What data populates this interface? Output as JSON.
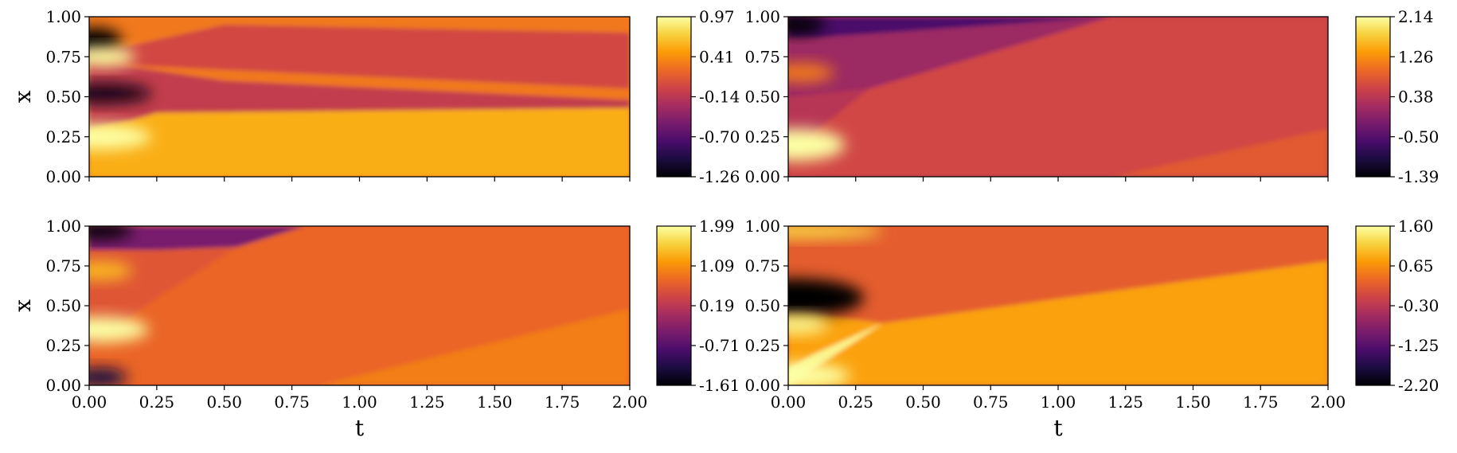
{
  "figure": {
    "colormap": "inferno",
    "colormap_stops": [
      "#000004",
      "#1b0c41",
      "#4a0c6b",
      "#781c6d",
      "#a52c60",
      "#cf4446",
      "#ed6925",
      "#fb9b06",
      "#f7d13d",
      "#fcffa4"
    ]
  },
  "chart_data": [
    {
      "type": "heatmap",
      "panel": "top-left",
      "xlabel": "",
      "ylabel": "x",
      "xlim": [
        0,
        2
      ],
      "ylim": [
        0,
        1
      ],
      "x_ticks": [
        0,
        0.25,
        0.5,
        0.75,
        1.0,
        1.25,
        1.5,
        1.75,
        2.0
      ],
      "x_tick_labels": [],
      "y_tick_labels": [
        "0.00",
        "0.25",
        "0.50",
        "0.75",
        "1.00"
      ],
      "colorbar_range": [
        -1.26,
        0.97
      ],
      "colorbar_tick_labels": [
        "-1.26",
        "-0.70",
        "-0.14",
        "0.41",
        "0.97"
      ],
      "field": {
        "background": 0.3,
        "regions": [
          {
            "poly": [
              [
                0,
                0
              ],
              [
                0.25,
                0
              ],
              [
                0.5,
                0
              ],
              [
                2,
                0
              ],
              [
                2,
                0.43
              ],
              [
                0.25,
                0.4
              ],
              [
                0.15,
                0.35
              ],
              [
                0,
                0.3
              ]
            ],
            "value": 0.56
          },
          {
            "poly": [
              [
                0,
                0.3
              ],
              [
                0.15,
                0.35
              ],
              [
                0.25,
                0.4
              ],
              [
                2,
                0.43
              ],
              [
                2,
                0.48
              ],
              [
                0.5,
                0.6
              ],
              [
                0.1,
                0.7
              ],
              [
                0,
                0.7
              ]
            ],
            "value": -0.1
          },
          {
            "poly": [
              [
                0,
                0.7
              ],
              [
                0.1,
                0.7
              ],
              [
                2,
                0.55
              ],
              [
                2,
                0.9
              ],
              [
                0.5,
                0.95
              ],
              [
                0.1,
                0.8
              ],
              [
                0,
                0.85
              ]
            ],
            "value": 0.0
          }
        ],
        "spots": [
          {
            "x": 0.02,
            "y": 0.85,
            "rx": 0.1,
            "ry": 0.08,
            "value": -1.26
          },
          {
            "x": 0.05,
            "y": 0.52,
            "rx": 0.18,
            "ry": 0.06,
            "value": -1.2
          },
          {
            "x": 0.05,
            "y": 0.75,
            "rx": 0.12,
            "ry": 0.06,
            "value": 0.97
          },
          {
            "x": 0.03,
            "y": 0.25,
            "rx": 0.2,
            "ry": 0.08,
            "value": 0.97
          }
        ]
      }
    },
    {
      "type": "heatmap",
      "panel": "top-right",
      "xlabel": "",
      "ylabel": "",
      "xlim": [
        0,
        2
      ],
      "ylim": [
        0,
        1
      ],
      "x_ticks": [
        0,
        0.25,
        0.5,
        0.75,
        1.0,
        1.25,
        1.5,
        1.75,
        2.0
      ],
      "x_tick_labels": [],
      "y_tick_labels": [
        "0.00",
        "0.25",
        "0.50",
        "0.75",
        "1.00"
      ],
      "colorbar_range": [
        -1.39,
        2.14
      ],
      "colorbar_tick_labels": [
        "-1.39",
        "-0.50",
        "0.38",
        "1.26",
        "2.14"
      ],
      "field": {
        "background": 0.35,
        "regions": [
          {
            "poly": [
              [
                0,
                0.15
              ],
              [
                0.3,
                0.55
              ],
              [
                1.0,
                0.9
              ],
              [
                1.2,
                1
              ],
              [
                2,
                1
              ],
              [
                2,
                0.3
              ],
              [
                1.2,
                0
              ],
              [
                0.3,
                0
              ],
              [
                0,
                0
              ]
            ],
            "value": 0.6
          },
          {
            "poly": [
              [
                0,
                0
              ],
              [
                1.2,
                0
              ],
              [
                2,
                0.3
              ],
              [
                2,
                0
              ],
              [
                1.2,
                0
              ]
            ],
            "value": 0.8
          },
          {
            "poly": [
              [
                0,
                0.5
              ],
              [
                0.3,
                0.55
              ],
              [
                1.0,
                0.9
              ],
              [
                1.2,
                1
              ],
              [
                0,
                1
              ]
            ],
            "value": 0.1
          },
          {
            "poly": [
              [
                0,
                0.87
              ],
              [
                0.1,
                0.87
              ],
              [
                1.2,
                1
              ],
              [
                0,
                1
              ]
            ],
            "value": -0.6
          }
        ],
        "spots": [
          {
            "x": 0.02,
            "y": 0.95,
            "rx": 0.12,
            "ry": 0.06,
            "value": -1.39
          },
          {
            "x": 0.03,
            "y": 0.2,
            "rx": 0.18,
            "ry": 0.1,
            "value": 2.14
          },
          {
            "x": 0.05,
            "y": 0.65,
            "rx": 0.12,
            "ry": 0.06,
            "value": 1.1
          }
        ]
      }
    },
    {
      "type": "heatmap",
      "panel": "bottom-left",
      "xlabel": "t",
      "ylabel": "x",
      "xlim": [
        0,
        2
      ],
      "ylim": [
        0,
        1
      ],
      "x_ticks": [
        0,
        0.25,
        0.5,
        0.75,
        1.0,
        1.25,
        1.5,
        1.75,
        2.0
      ],
      "x_tick_labels": [
        "0.00",
        "0.25",
        "0.50",
        "0.75",
        "1.00",
        "1.25",
        "1.50",
        "1.75",
        "2.00"
      ],
      "y_tick_labels": [
        "0.00",
        "0.25",
        "0.50",
        "0.75",
        "1.00"
      ],
      "colorbar_range": [
        -1.61,
        1.99
      ],
      "colorbar_tick_labels": [
        "-1.61",
        "-0.71",
        "0.19",
        "1.09",
        "1.99"
      ],
      "field": {
        "background": 0.6,
        "regions": [
          {
            "poly": [
              [
                0,
                0.25
              ],
              [
                0.25,
                0.55
              ],
              [
                0.55,
                0.87
              ],
              [
                0.8,
                1
              ],
              [
                2,
                1
              ],
              [
                2,
                0.48
              ],
              [
                0.85,
                0
              ],
              [
                0,
                0
              ]
            ],
            "value": 0.75
          },
          {
            "poly": [
              [
                0.85,
                0
              ],
              [
                2,
                0.48
              ],
              [
                2,
                0
              ]
            ],
            "value": 0.95
          },
          {
            "poly": [
              [
                0,
                0.85
              ],
              [
                0.25,
                0.85
              ],
              [
                0.55,
                0.87
              ],
              [
                0.8,
                1
              ],
              [
                0,
                1
              ]
            ],
            "value": -0.4
          }
        ],
        "spots": [
          {
            "x": 0.04,
            "y": 0.97,
            "rx": 0.12,
            "ry": 0.05,
            "value": -1.61
          },
          {
            "x": 0.04,
            "y": 0.05,
            "rx": 0.1,
            "ry": 0.06,
            "value": -1.2
          },
          {
            "x": 0.04,
            "y": 0.35,
            "rx": 0.18,
            "ry": 0.08,
            "value": 1.99
          },
          {
            "x": 0.04,
            "y": 0.72,
            "rx": 0.12,
            "ry": 0.06,
            "value": 1.4
          }
        ]
      }
    },
    {
      "type": "heatmap",
      "panel": "bottom-right",
      "xlabel": "t",
      "ylabel": "",
      "xlim": [
        0,
        2
      ],
      "ylim": [
        0,
        1
      ],
      "x_ticks": [
        0,
        0.25,
        0.5,
        0.75,
        1.0,
        1.25,
        1.5,
        1.75,
        2.0
      ],
      "x_tick_labels": [
        "0.00",
        "0.25",
        "0.50",
        "0.75",
        "1.00",
        "1.25",
        "1.50",
        "1.75",
        "2.00"
      ],
      "y_tick_labels": [
        "0.00",
        "0.25",
        "0.50",
        "0.75",
        "1.00"
      ],
      "colorbar_range": [
        -2.2,
        1.6
      ],
      "colorbar_tick_labels": [
        "-2.20",
        "-1.25",
        "-0.30",
        "0.65",
        "1.60"
      ],
      "field": {
        "background": 0.2,
        "regions": [
          {
            "poly": [
              [
                0,
                0
              ],
              [
                0,
                0.47
              ],
              [
                0.35,
                0.39
              ],
              [
                2,
                0.78
              ],
              [
                2,
                0
              ]
            ],
            "value": 0.8
          },
          {
            "poly": [
              [
                0,
                0
              ],
              [
                0.35,
                0.39
              ],
              [
                0.1,
                0.2
              ],
              [
                0,
                0.1
              ]
            ],
            "value": 1.5
          }
        ],
        "spots": [
          {
            "x": 0.03,
            "y": 0.55,
            "rx": 0.25,
            "ry": 0.12,
            "value": -2.2
          },
          {
            "x": 0.05,
            "y": 0.97,
            "rx": 0.3,
            "ry": 0.05,
            "value": 1.2
          },
          {
            "x": 0.03,
            "y": 0.06,
            "rx": 0.2,
            "ry": 0.08,
            "value": 1.6
          },
          {
            "x": 0.03,
            "y": 0.38,
            "rx": 0.12,
            "ry": 0.06,
            "value": 1.5
          }
        ]
      }
    }
  ]
}
